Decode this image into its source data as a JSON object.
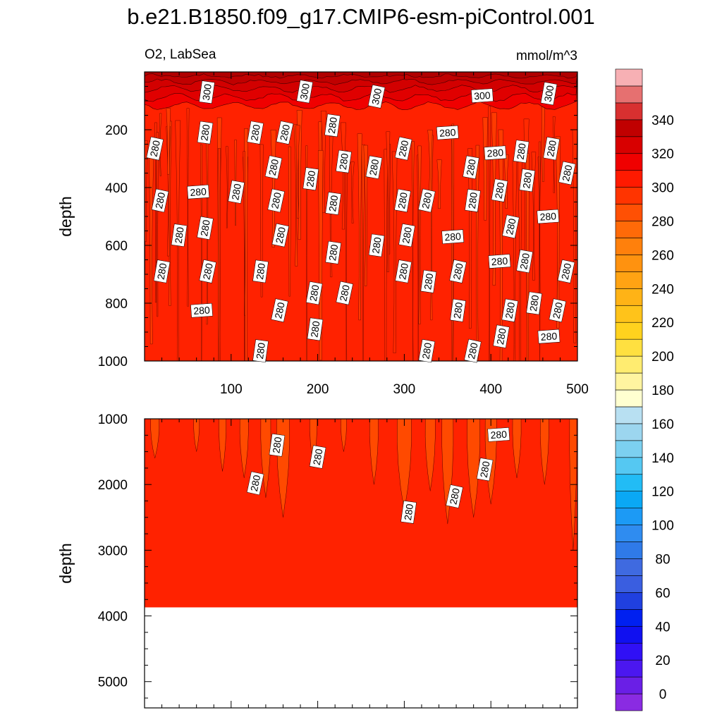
{
  "chart_data": {
    "type": "contour",
    "title": "b.e21.B1850.f09_g17.CMIP6-esm-piControl.001",
    "variable_label": "O2, LabSea",
    "units": "mmol/m^3",
    "panels": [
      {
        "name": "upper",
        "ylabel": "depth",
        "xlim": [
          0,
          500
        ],
        "ylim": [
          1000,
          0
        ],
        "xticks": [
          100,
          200,
          300,
          400,
          500
        ],
        "yticks": [
          200,
          400,
          600,
          800,
          1000
        ],
        "surface_layer_value_range": [
          300,
          340
        ],
        "contour_labels": [
          {
            "x": 72,
            "y": 70,
            "text": "300"
          },
          {
            "x": 185,
            "y": 68,
            "text": "300"
          },
          {
            "x": 268,
            "y": 85,
            "text": "300"
          },
          {
            "x": 390,
            "y": 82,
            "text": "300"
          },
          {
            "x": 467,
            "y": 75,
            "text": "300"
          },
          {
            "x": 12,
            "y": 265,
            "text": "280"
          },
          {
            "x": 70,
            "y": 210,
            "text": "280"
          },
          {
            "x": 128,
            "y": 210,
            "text": "280"
          },
          {
            "x": 162,
            "y": 210,
            "text": "280"
          },
          {
            "x": 217,
            "y": 185,
            "text": "280"
          },
          {
            "x": 350,
            "y": 210,
            "text": "280"
          },
          {
            "x": 299,
            "y": 265,
            "text": "280"
          },
          {
            "x": 230,
            "y": 310,
            "text": "280"
          },
          {
            "x": 265,
            "y": 330,
            "text": "280"
          },
          {
            "x": 149,
            "y": 330,
            "text": "280"
          },
          {
            "x": 192,
            "y": 370,
            "text": "280"
          },
          {
            "x": 377,
            "y": 330,
            "text": "280"
          },
          {
            "x": 405,
            "y": 280,
            "text": "280"
          },
          {
            "x": 435,
            "y": 275,
            "text": "280"
          },
          {
            "x": 470,
            "y": 265,
            "text": "280"
          },
          {
            "x": 488,
            "y": 350,
            "text": "280"
          },
          {
            "x": 442,
            "y": 375,
            "text": "280"
          },
          {
            "x": 410,
            "y": 410,
            "text": "280"
          },
          {
            "x": 18,
            "y": 445,
            "text": "280"
          },
          {
            "x": 62,
            "y": 415,
            "text": "280"
          },
          {
            "x": 106,
            "y": 415,
            "text": "280"
          },
          {
            "x": 152,
            "y": 445,
            "text": "280"
          },
          {
            "x": 218,
            "y": 455,
            "text": "280"
          },
          {
            "x": 298,
            "y": 445,
            "text": "280"
          },
          {
            "x": 326,
            "y": 445,
            "text": "280"
          },
          {
            "x": 379,
            "y": 445,
            "text": "280"
          },
          {
            "x": 466,
            "y": 500,
            "text": "280"
          },
          {
            "x": 423,
            "y": 535,
            "text": "280"
          },
          {
            "x": 40,
            "y": 565,
            "text": "280"
          },
          {
            "x": 70,
            "y": 540,
            "text": "280"
          },
          {
            "x": 157,
            "y": 565,
            "text": "280"
          },
          {
            "x": 268,
            "y": 600,
            "text": "280"
          },
          {
            "x": 303,
            "y": 565,
            "text": "280"
          },
          {
            "x": 356,
            "y": 570,
            "text": "280"
          },
          {
            "x": 218,
            "y": 625,
            "text": "280"
          },
          {
            "x": 20,
            "y": 690,
            "text": "280"
          },
          {
            "x": 73,
            "y": 690,
            "text": "280"
          },
          {
            "x": 134,
            "y": 690,
            "text": "280"
          },
          {
            "x": 299,
            "y": 690,
            "text": "280"
          },
          {
            "x": 362,
            "y": 690,
            "text": "280"
          },
          {
            "x": 410,
            "y": 655,
            "text": "280"
          },
          {
            "x": 439,
            "y": 655,
            "text": "280"
          },
          {
            "x": 487,
            "y": 690,
            "text": "280"
          },
          {
            "x": 328,
            "y": 725,
            "text": "280"
          },
          {
            "x": 196,
            "y": 765,
            "text": "280"
          },
          {
            "x": 231,
            "y": 765,
            "text": "280"
          },
          {
            "x": 450,
            "y": 800,
            "text": "280"
          },
          {
            "x": 66,
            "y": 825,
            "text": "280"
          },
          {
            "x": 156,
            "y": 825,
            "text": "280"
          },
          {
            "x": 362,
            "y": 825,
            "text": "280"
          },
          {
            "x": 422,
            "y": 825,
            "text": "280"
          },
          {
            "x": 477,
            "y": 825,
            "text": "280"
          },
          {
            "x": 197,
            "y": 890,
            "text": "280"
          },
          {
            "x": 412,
            "y": 915,
            "text": "280"
          },
          {
            "x": 467,
            "y": 915,
            "text": "280"
          },
          {
            "x": 134,
            "y": 965,
            "text": "280"
          },
          {
            "x": 326,
            "y": 965,
            "text": "280"
          },
          {
            "x": 379,
            "y": 965,
            "text": "280"
          }
        ]
      },
      {
        "name": "lower",
        "ylabel": "depth",
        "xlim": [
          0,
          500
        ],
        "ylim": [
          5400,
          1000
        ],
        "yticks": [
          1000,
          2000,
          3000,
          4000,
          5000
        ],
        "bottom_of_data_depth": 3870,
        "contour_labels": [
          {
            "x": 153,
            "y": 1400,
            "text": "280"
          },
          {
            "x": 200,
            "y": 1580,
            "text": "280"
          },
          {
            "x": 128,
            "y": 1980,
            "text": "280"
          },
          {
            "x": 409,
            "y": 1240,
            "text": "280"
          },
          {
            "x": 393,
            "y": 1770,
            "text": "280"
          },
          {
            "x": 358,
            "y": 2180,
            "text": "280"
          },
          {
            "x": 305,
            "y": 2420,
            "text": "280"
          }
        ]
      }
    ],
    "colorbar": {
      "levels": [
        -10,
        0,
        10,
        20,
        30,
        40,
        50,
        60,
        70,
        80,
        90,
        100,
        110,
        120,
        130,
        140,
        150,
        160,
        170,
        180,
        190,
        200,
        210,
        220,
        230,
        240,
        250,
        260,
        270,
        280,
        290,
        300,
        310,
        320,
        330,
        340,
        350,
        360
      ],
      "colors": [
        "#8a2be2",
        "#6a1fe6",
        "#4b17f0",
        "#3010f5",
        "#1010f0",
        "#0020f0",
        "#2040e0",
        "#3a5ee0",
        "#3f6ae0",
        "#2f7ae8",
        "#2f8cf0",
        "#1c9af5",
        "#0aa8f5",
        "#22bcf5",
        "#55c8f2",
        "#7cd0f0",
        "#9cd6ef",
        "#b8e0f2",
        "#ffffd0",
        "#fff4a0",
        "#ffec70",
        "#ffe040",
        "#ffd21e",
        "#ffc31a",
        "#ffb316",
        "#ffa313",
        "#ff920f",
        "#ff800c",
        "#ff6a08",
        "#ff5004",
        "#ff3400",
        "#ff1a00",
        "#f00000",
        "#d80000",
        "#c00000",
        "#d83030",
        "#e67070",
        "#f7b0b4"
      ],
      "tick_labels": [
        "0",
        "20",
        "40",
        "60",
        "80",
        "100",
        "120",
        "140",
        "160",
        "180",
        "200",
        "220",
        "240",
        "260",
        "280",
        "300",
        "320",
        "340"
      ]
    }
  }
}
